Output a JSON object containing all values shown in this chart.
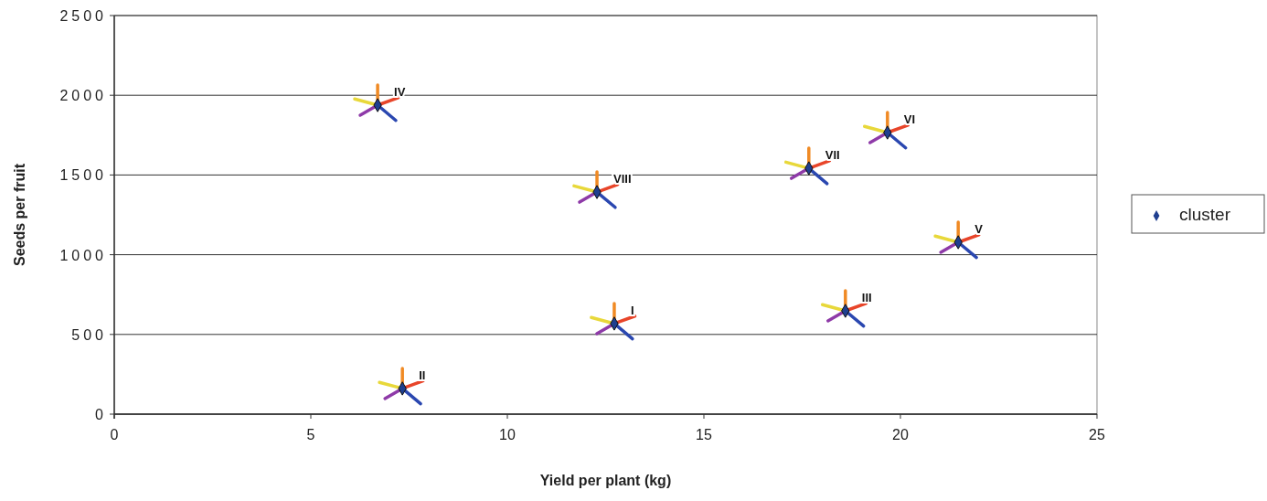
{
  "chart_data": {
    "type": "scatter",
    "xlabel": "Yield per plant (kg)",
    "ylabel": "Seeds per fruit",
    "xlim": [
      0,
      25
    ],
    "xticks": [
      0,
      5,
      10,
      15,
      20,
      25
    ],
    "ylim": [
      0,
      2500
    ],
    "yticks": [
      0,
      500,
      1000,
      1500,
      2000,
      2500
    ],
    "grid": "y",
    "legend": "right",
    "marker": "diamond",
    "series": [
      {
        "name": "cluster",
        "color": "#1f3f8f",
        "x": [
          6.7,
          12.28,
          17.67,
          19.67,
          21.47,
          12.72,
          18.6,
          7.33
        ],
        "values": [
          1938,
          1393,
          1542,
          1766,
          1078,
          568,
          648,
          161
        ]
      }
    ],
    "annotations": [
      {
        "text": "IV",
        "x": 6.7,
        "y": 1938
      },
      {
        "text": "VIII",
        "x": 12.28,
        "y": 1393
      },
      {
        "text": "VII",
        "x": 17.67,
        "y": 1542
      },
      {
        "text": "VI",
        "x": 19.67,
        "y": 1766
      },
      {
        "text": "V",
        "x": 21.47,
        "y": 1078
      },
      {
        "text": "I",
        "x": 12.72,
        "y": 568
      },
      {
        "text": "III",
        "x": 18.6,
        "y": 648
      },
      {
        "text": "II",
        "x": 7.33,
        "y": 161
      }
    ]
  }
}
